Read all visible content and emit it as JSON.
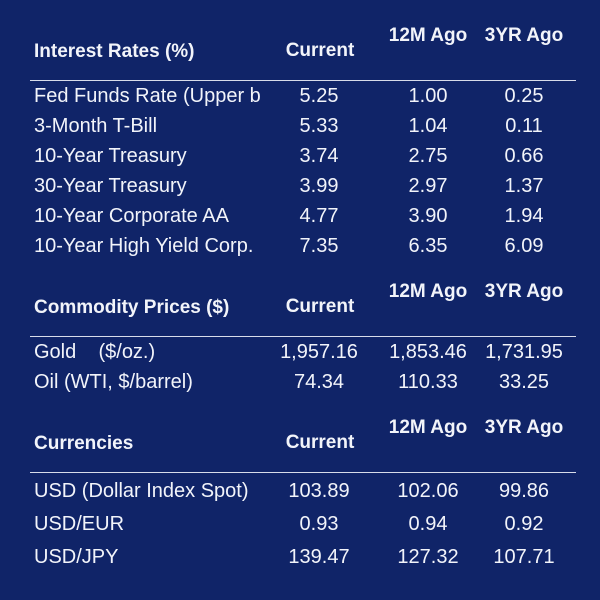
{
  "sections": [
    {
      "title": "Interest Rates (%)",
      "col_current": "Current",
      "col_12m": "12M\nAgo",
      "col_3yr": "3YR\nAgo",
      "rows": [
        {
          "label": "Fed Funds Rate (Upper b",
          "current": "5.25",
          "m12": "1.00",
          "y3": "0.25"
        },
        {
          "label": "3-Month T-Bill",
          "current": "5.33",
          "m12": "1.04",
          "y3": "0.11"
        },
        {
          "label": "10-Year Treasury",
          "current": "3.74",
          "m12": "2.75",
          "y3": "0.66"
        },
        {
          "label": "30-Year Treasury",
          "current": "3.99",
          "m12": "2.97",
          "y3": "1.37"
        },
        {
          "label": "10-Year Corporate AA",
          "current": "4.77",
          "m12": "3.90",
          "y3": "1.94"
        },
        {
          "label": "10-Year High Yield Corp.",
          "current": "7.35",
          "m12": "6.35",
          "y3": "6.09"
        }
      ]
    },
    {
      "title": "Commodity Prices ($)",
      "col_current": "Current",
      "col_12m": "12M\nAgo",
      "col_3yr": "3YR\nAgo",
      "rows": [
        {
          "label": "Gold    ($/oz.)",
          "current": "1,957.16",
          "m12": "1,853.46",
          "y3": "1,731.95"
        },
        {
          "label": "Oil (WTI, $/barrel)",
          "current": "74.34",
          "m12": "110.33",
          "y3": "33.25"
        }
      ]
    },
    {
      "title": "Currencies",
      "col_current": "Current",
      "col_12m": "12M\nAgo",
      "col_3yr": "3YR\nAgo",
      "rows": [
        {
          "label": "USD (Dollar Index Spot)",
          "current": "103.89",
          "m12": "102.06",
          "y3": "99.86"
        },
        {
          "label": "USD/EUR",
          "current": "0.93",
          "m12": "0.94",
          "y3": "0.92"
        },
        {
          "label": "USD/JPY",
          "current": "139.47",
          "m12": "127.32",
          "y3": "107.71"
        }
      ]
    }
  ],
  "colors": {
    "background": "#102468",
    "text": "#f2f4fa",
    "rule": "#d8dcea"
  }
}
